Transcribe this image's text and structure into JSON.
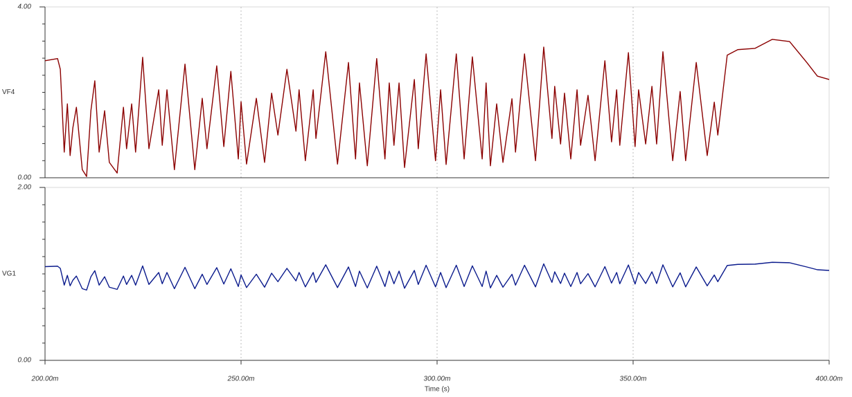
{
  "chart_data": [
    {
      "type": "line",
      "series": [
        {
          "name": "VF4",
          "color": "#8b0000",
          "values": [
            2.74,
            2.79,
            2.54,
            0.6,
            1.73,
            0.52,
            1.17,
            1.65,
            0.19,
            0.03,
            1.57,
            2.27,
            0.6,
            1.57,
            0.36,
            0.11,
            1.65,
            0.68,
            1.73,
            0.6,
            2.82,
            0.68,
            2.06,
            0.76,
            2.06,
            0.19,
            2.66,
            0.19,
            1.86,
            0.68,
            2.62,
            0.73,
            2.49,
            0.44,
            1.78,
            0.32,
            1.86,
            0.36,
            1.98,
            1.0,
            2.54,
            1.09,
            2.06,
            0.4,
            2.06,
            0.92,
            2.95,
            0.32,
            2.7,
            0.44,
            2.22,
            0.28,
            2.79,
            0.44,
            2.22,
            0.76,
            2.22,
            0.24,
            2.3,
            0.68,
            2.9,
            0.4,
            2.06,
            0.31,
            2.9,
            0.44,
            2.83,
            0.44,
            2.22,
            0.28,
            1.73,
            0.36,
            1.85,
            0.6,
            2.9,
            0.4,
            3.06,
            0.92,
            2.14,
            0.79,
            1.98,
            0.44,
            2.06,
            0.76,
            1.93,
            0.4,
            2.74,
            0.84,
            2.06,
            0.76,
            2.93,
            0.73,
            2.06,
            0.79,
            2.14,
            0.79,
            2.95,
            0.4,
            2.02,
            0.4,
            2.7,
            0.52,
            1.77,
            1.0,
            2.87,
            3.0,
            3.03,
            3.24,
            3.19,
            2.7,
            2.38,
            2.3
          ]
        }
      ],
      "x": [
        0.2,
        0.2032,
        0.2039,
        0.2049,
        0.2057,
        0.2064,
        0.2071,
        0.208,
        0.2095,
        0.2106,
        0.2117,
        0.2127,
        0.2138,
        0.2152,
        0.2164,
        0.2184,
        0.22,
        0.2208,
        0.2221,
        0.2231,
        0.2249,
        0.2265,
        0.229,
        0.2299,
        0.2311,
        0.233,
        0.2357,
        0.2382,
        0.2401,
        0.2413,
        0.2438,
        0.2456,
        0.2474,
        0.2493,
        0.25,
        0.2514,
        0.2539,
        0.256,
        0.2578,
        0.2594,
        0.2617,
        0.264,
        0.2648,
        0.2664,
        0.2684,
        0.2691,
        0.2716,
        0.2746,
        0.2774,
        0.2792,
        0.2802,
        0.2822,
        0.2846,
        0.2867,
        0.2878,
        0.289,
        0.2903,
        0.2917,
        0.2942,
        0.2952,
        0.2972,
        0.2996,
        0.3009,
        0.3023,
        0.3049,
        0.3069,
        0.309,
        0.3115,
        0.3125,
        0.3136,
        0.3152,
        0.3168,
        0.3191,
        0.32,
        0.3223,
        0.3251,
        0.3272,
        0.3293,
        0.33,
        0.3315,
        0.3325,
        0.3341,
        0.3357,
        0.3366,
        0.3385,
        0.3403,
        0.3428,
        0.3445,
        0.3458,
        0.3466,
        0.3488,
        0.3505,
        0.3514,
        0.3532,
        0.3548,
        0.356,
        0.3576,
        0.3601,
        0.362,
        0.3634,
        0.3661,
        0.3689,
        0.3707,
        0.3716,
        0.374,
        0.3767,
        0.3811,
        0.3855,
        0.3899,
        0.3943,
        0.397,
        0.4
      ],
      "xlim": [
        0.2,
        0.4
      ],
      "xticks": [
        0.25,
        0.3,
        0.35
      ],
      "ylim": [
        0,
        4
      ],
      "yticks": [
        {
          "value": 0,
          "label": "0.00"
        },
        {
          "value": 4,
          "label": "4.00"
        }
      ],
      "grid": true
    },
    {
      "type": "line",
      "series": [
        {
          "name": "VG1",
          "color": "#0a1a8c",
          "values": [
            1.084,
            1.089,
            1.064,
            0.87,
            0.983,
            0.862,
            0.927,
            0.975,
            0.829,
            0.813,
            0.967,
            1.037,
            0.87,
            0.967,
            0.846,
            0.821,
            0.975,
            0.878,
            0.983,
            0.87,
            1.092,
            0.878,
            1.016,
            0.886,
            1.016,
            0.829,
            1.076,
            0.829,
            0.996,
            0.878,
            1.072,
            0.883,
            1.059,
            0.854,
            0.988,
            0.842,
            0.996,
            0.846,
            1.008,
            0.91,
            1.064,
            0.919,
            1.016,
            0.85,
            1.016,
            0.902,
            1.105,
            0.842,
            1.08,
            0.854,
            1.032,
            0.838,
            1.089,
            0.854,
            1.032,
            0.886,
            1.032,
            0.834,
            1.04,
            0.878,
            1.1,
            0.85,
            1.016,
            0.841,
            1.1,
            0.854,
            1.093,
            0.854,
            1.032,
            0.838,
            0.983,
            0.846,
            0.995,
            0.87,
            1.1,
            0.85,
            1.116,
            0.902,
            1.024,
            0.889,
            1.008,
            0.854,
            1.016,
            0.886,
            1.003,
            0.85,
            1.084,
            0.894,
            1.016,
            0.886,
            1.103,
            0.883,
            1.016,
            0.889,
            1.024,
            0.889,
            1.105,
            0.85,
            1.012,
            0.85,
            1.08,
            0.862,
            0.987,
            0.91,
            1.097,
            1.11,
            1.113,
            1.134,
            1.129,
            1.08,
            1.048,
            1.04
          ]
        }
      ],
      "x": [
        0.2,
        0.2032,
        0.2039,
        0.2049,
        0.2057,
        0.2064,
        0.2071,
        0.208,
        0.2095,
        0.2106,
        0.2117,
        0.2127,
        0.2138,
        0.2152,
        0.2164,
        0.2184,
        0.22,
        0.2208,
        0.2221,
        0.2231,
        0.2249,
        0.2265,
        0.229,
        0.2299,
        0.2311,
        0.233,
        0.2357,
        0.2382,
        0.2401,
        0.2413,
        0.2438,
        0.2456,
        0.2474,
        0.2493,
        0.25,
        0.2514,
        0.2539,
        0.256,
        0.2578,
        0.2594,
        0.2617,
        0.264,
        0.2648,
        0.2664,
        0.2684,
        0.2691,
        0.2716,
        0.2746,
        0.2774,
        0.2792,
        0.2802,
        0.2822,
        0.2846,
        0.2867,
        0.2878,
        0.289,
        0.2903,
        0.2917,
        0.2942,
        0.2952,
        0.2972,
        0.2996,
        0.3009,
        0.3023,
        0.3049,
        0.3069,
        0.309,
        0.3115,
        0.3125,
        0.3136,
        0.3152,
        0.3168,
        0.3191,
        0.32,
        0.3223,
        0.3251,
        0.3272,
        0.3293,
        0.33,
        0.3315,
        0.3325,
        0.3341,
        0.3357,
        0.3366,
        0.3385,
        0.3403,
        0.3428,
        0.3445,
        0.3458,
        0.3466,
        0.3488,
        0.3505,
        0.3514,
        0.3532,
        0.3548,
        0.356,
        0.3576,
        0.3601,
        0.362,
        0.3634,
        0.3661,
        0.3689,
        0.3707,
        0.3716,
        0.374,
        0.3767,
        0.3811,
        0.3855,
        0.3899,
        0.3943,
        0.397,
        0.4
      ],
      "xlim": [
        0.2,
        0.4
      ],
      "xticks": [
        {
          "value": 0.2,
          "label": "200.00m"
        },
        {
          "value": 0.25,
          "label": "250.00m"
        },
        {
          "value": 0.3,
          "label": "300.00m"
        },
        {
          "value": 0.35,
          "label": "350.00m"
        },
        {
          "value": 0.4,
          "label": "400.00m"
        }
      ],
      "xlabel": "Time (s)",
      "ylim": [
        0,
        2
      ],
      "yticks": [
        {
          "value": 0,
          "label": "0.00"
        },
        {
          "value": 2,
          "label": "2.00"
        }
      ],
      "grid": true
    }
  ]
}
